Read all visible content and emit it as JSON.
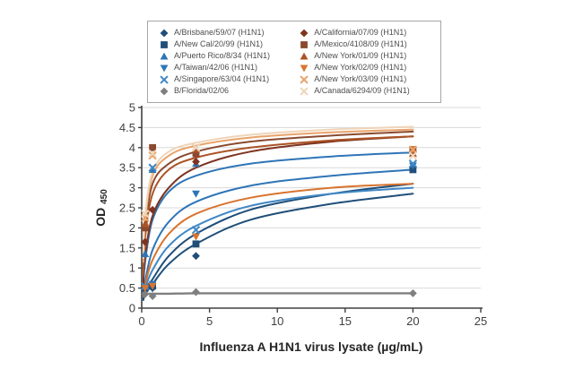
{
  "figure": {
    "xlabel": "Influenza A H1N1 virus lysate (µg/mL)",
    "ylabel_main": "OD",
    "ylabel_sub": "450"
  },
  "chart_data": {
    "type": "scatter",
    "title": "",
    "xlabel": "Influenza A H1N1 virus lysate (µg/mL)",
    "ylabel": "OD 450",
    "xlim": [
      0,
      25
    ],
    "ylim": [
      0,
      5
    ],
    "xticks": [
      0,
      5,
      10,
      15,
      20,
      25
    ],
    "ytick_step": 0.5,
    "grid": "horizontal",
    "legend_position": "top-center",
    "axis_color": "#404040",
    "grid_color": "#d9d9d9",
    "curve_x": [
      0.12,
      0.25,
      0.8,
      2,
      4,
      8,
      14,
      20
    ],
    "series": [
      {
        "label": "A/Brisbane/59/07 (H1N1)",
        "color": "#1f4e79",
        "marker": "diamond",
        "points": [
          [
            0.25,
            0.45
          ],
          [
            0.8,
            0.5
          ],
          [
            4,
            1.3
          ],
          [
            20,
            3.5
          ]
        ],
        "curve_y": [
          0.2,
          0.35,
          0.6,
          1.1,
          1.6,
          2.2,
          2.6,
          2.85
        ]
      },
      {
        "label": "A/New Cal/20/99 (H1N1)",
        "color": "#1f4e79",
        "marker": "square",
        "points": [
          [
            0.25,
            0.5
          ],
          [
            0.8,
            0.55
          ],
          [
            4,
            1.6
          ],
          [
            20,
            3.45
          ]
        ],
        "curve_y": [
          0.25,
          0.42,
          0.72,
          1.3,
          1.85,
          2.45,
          2.85,
          3.1
        ]
      },
      {
        "label": "A/Puerto Rico/8/34 (H1N1)",
        "color": "#2e75b6",
        "marker": "triangle-up",
        "points": [
          [
            0.25,
            1.35
          ],
          [
            0.8,
            3.45
          ],
          [
            4,
            3.6
          ],
          [
            20,
            3.85
          ]
        ],
        "curve_y": [
          0.5,
          1.15,
          2.2,
          2.9,
          3.3,
          3.6,
          3.78,
          3.88
        ]
      },
      {
        "label": "A/Taiwan/42/06 (H1N1)",
        "color": "#2e75b6",
        "marker": "triangle-down",
        "points": [
          [
            0.25,
            0.5
          ],
          [
            0.8,
            0.6
          ],
          [
            4,
            2.85
          ],
          [
            20,
            3.55
          ]
        ],
        "curve_y": [
          0.3,
          0.65,
          1.45,
          2.15,
          2.65,
          3.05,
          3.3,
          3.45
        ]
      },
      {
        "label": "A/Singapore/63/04 (H1N1)",
        "color": "#3f87c5",
        "marker": "x",
        "points": [
          [
            0.25,
            0.55
          ],
          [
            0.8,
            3.5
          ],
          [
            4,
            1.95
          ],
          [
            20,
            3.6
          ]
        ],
        "curve_y": [
          0.28,
          0.5,
          0.95,
          1.55,
          2.05,
          2.55,
          2.85,
          3.0
        ]
      },
      {
        "label": "B/Florida/02/06",
        "color": "#7f7f7f",
        "marker": "diamond",
        "points": [
          [
            0.25,
            0.35
          ],
          [
            0.8,
            0.3
          ],
          [
            4,
            0.4
          ],
          [
            20,
            0.37
          ]
        ],
        "curve_y": [
          0.36,
          0.36,
          0.36,
          0.36,
          0.37,
          0.37,
          0.37,
          0.37
        ]
      },
      {
        "label": "A/California/07/09 (H1N1)",
        "color": "#7e3420",
        "marker": "diamond",
        "points": [
          [
            0.25,
            1.65
          ],
          [
            0.8,
            2.45
          ],
          [
            4,
            3.65
          ],
          [
            20,
            3.9
          ]
        ],
        "curve_y": [
          0.6,
          1.3,
          2.3,
          3.0,
          3.5,
          3.9,
          4.15,
          4.28
        ]
      },
      {
        "label": "A/Mexico/4108/09 (H1N1)",
        "color": "#8a4a2f",
        "marker": "square",
        "points": [
          [
            0.25,
            2.0
          ],
          [
            0.8,
            4.0
          ],
          [
            4,
            3.85
          ],
          [
            20,
            3.95
          ]
        ],
        "curve_y": [
          1.0,
          1.95,
          3.1,
          3.6,
          3.9,
          4.15,
          4.3,
          4.4
        ]
      },
      {
        "label": "A/New York/01/09 (H1N1)",
        "color": "#ab5325",
        "marker": "triangle-up",
        "points": [
          [
            0.25,
            2.1
          ],
          [
            4,
            3.95
          ],
          [
            20,
            3.85
          ]
        ],
        "curve_y": [
          0.85,
          1.75,
          2.85,
          3.45,
          3.75,
          4.0,
          4.18,
          4.28
        ]
      },
      {
        "label": "A/New York/02/09 (H1N1)",
        "color": "#d8742f",
        "marker": "triangle-down",
        "points": [
          [
            0.25,
            0.5
          ],
          [
            0.8,
            0.55
          ],
          [
            4,
            1.78
          ],
          [
            20,
            3.95
          ]
        ],
        "curve_y": [
          0.3,
          0.58,
          1.2,
          1.85,
          2.35,
          2.75,
          3.0,
          3.1
        ]
      },
      {
        "label": "A/New York/03/09 (H1N1)",
        "color": "#e9a269",
        "marker": "x",
        "points": [
          [
            0.25,
            2.25
          ],
          [
            0.8,
            3.8
          ],
          [
            4,
            4.0
          ],
          [
            20,
            3.95
          ]
        ],
        "curve_y": [
          1.15,
          2.15,
          3.3,
          3.8,
          4.05,
          4.25,
          4.38,
          4.45
        ]
      },
      {
        "label": "A/Canada/6294/09 (H1N1)",
        "color": "#eed5b9",
        "marker": "x",
        "points": [
          [
            0.25,
            2.35
          ],
          [
            0.8,
            3.85
          ],
          [
            4,
            4.0
          ],
          [
            20,
            3.8
          ]
        ],
        "curve_y": [
          1.25,
          2.3,
          3.4,
          3.9,
          4.12,
          4.32,
          4.45,
          4.52
        ]
      }
    ]
  }
}
